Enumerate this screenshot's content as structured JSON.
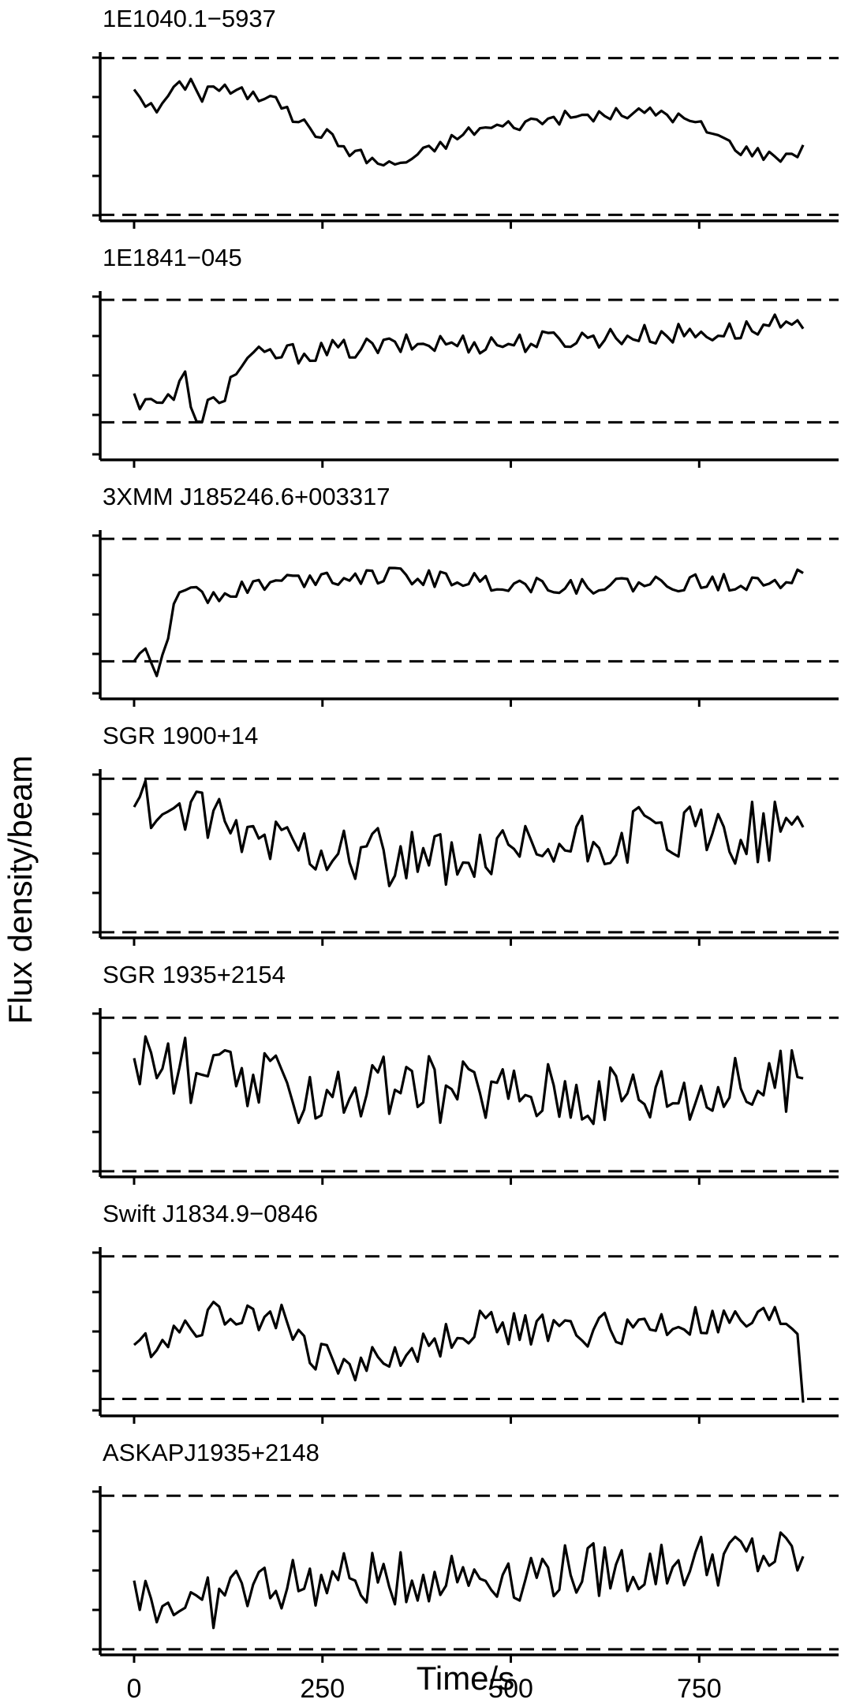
{
  "chart_data": {
    "type": "line",
    "ylabel": "Flux density/beam",
    "xlabel": "Time/s",
    "xlim": [
      -45,
      935
    ],
    "x_ticks": [
      0,
      250,
      500,
      750
    ],
    "x_tick_labels": [
      "0",
      "250",
      "500",
      "750"
    ],
    "grid": false,
    "legend": "none",
    "line_color": "#000000",
    "panels": [
      {
        "title": "1E1040.1−5937",
        "ylim": [
          -0.1,
          3.6
        ],
        "threshold_lines": [
          0,
          3.5
        ],
        "series": [
          {
            "keyframes": [
              [
                0,
                2.8
              ],
              [
                8,
                2.7
              ],
              [
                20,
                2.4
              ],
              [
                30,
                2.3
              ],
              [
                40,
                2.6
              ],
              [
                55,
                2.8
              ],
              [
                65,
                2.9
              ],
              [
                80,
                3.0
              ],
              [
                90,
                2.6
              ],
              [
                100,
                2.9
              ],
              [
                130,
                2.75
              ],
              [
                150,
                2.7
              ],
              [
                170,
                2.6
              ],
              [
                185,
                2.85
              ],
              [
                200,
                2.3
              ],
              [
                220,
                2.1
              ],
              [
                235,
                1.9
              ],
              [
                255,
                1.8
              ],
              [
                280,
                1.5
              ],
              [
                305,
                1.3
              ],
              [
                335,
                1.1
              ],
              [
                360,
                1.2
              ],
              [
                400,
                1.5
              ],
              [
                450,
                1.9
              ],
              [
                500,
                2.0
              ],
              [
                550,
                2.15
              ],
              [
                600,
                2.2
              ],
              [
                650,
                2.25
              ],
              [
                700,
                2.3
              ],
              [
                750,
                2.0
              ],
              [
                800,
                1.5
              ],
              [
                850,
                1.3
              ],
              [
                880,
                1.4
              ],
              [
                890,
                1.6
              ]
            ]
          }
        ]
      },
      {
        "title": "1E1841−045",
        "ylim": [
          -0.6,
          4.0
        ],
        "threshold_lines": [
          0.4,
          3.8
        ],
        "series": [
          {
            "keyframes": [
              [
                0,
                1.2
              ],
              [
                8,
                0.6
              ],
              [
                15,
                1.3
              ],
              [
                30,
                1.0
              ],
              [
                50,
                1.0
              ],
              [
                70,
                1.7
              ],
              [
                82,
                0.3
              ],
              [
                90,
                0.2
              ],
              [
                100,
                1.0
              ],
              [
                120,
                1.2
              ],
              [
                140,
                2.0
              ],
              [
                160,
                2.2
              ],
              [
                200,
                2.3
              ],
              [
                300,
                2.45
              ],
              [
                400,
                2.6
              ],
              [
                500,
                2.6
              ],
              [
                600,
                2.75
              ],
              [
                700,
                2.85
              ],
              [
                780,
                2.9
              ],
              [
                830,
                3.0
              ],
              [
                850,
                3.1
              ],
              [
                870,
                2.9
              ],
              [
                888,
                3.0
              ]
            ]
          }
        ]
      },
      {
        "title": "3XMM J185246.6+003317",
        "ylim": [
          -0.6,
          4.0
        ],
        "threshold_lines": [
          0.4,
          3.8
        ],
        "series": [
          {
            "keyframes": [
              [
                0,
                0.4
              ],
              [
                8,
                0.8
              ],
              [
                20,
                0.3
              ],
              [
                30,
                0.05
              ],
              [
                40,
                0.8
              ],
              [
                50,
                1.6
              ],
              [
                60,
                2.2
              ],
              [
                80,
                2.6
              ],
              [
                100,
                2.2
              ],
              [
                130,
                2.4
              ],
              [
                180,
                2.6
              ],
              [
                250,
                2.75
              ],
              [
                300,
                2.8
              ],
              [
                400,
                2.7
              ],
              [
                500,
                2.55
              ],
              [
                600,
                2.5
              ],
              [
                700,
                2.55
              ],
              [
                800,
                2.6
              ],
              [
                870,
                2.7
              ],
              [
                888,
                2.85
              ]
            ]
          }
        ]
      },
      {
        "title": "SGR 1900+14",
        "ylim": [
          -0.1,
          4.0
        ],
        "threshold_lines": [
          0,
          3.8
        ],
        "series": [
          {
            "keyframes": [
              [
                0,
                3.1
              ],
              [
                60,
                3.0
              ],
              [
                130,
                2.4
              ],
              [
                250,
                2.2
              ],
              [
                350,
                1.8
              ],
              [
                450,
                1.6
              ],
              [
                550,
                2.0
              ],
              [
                650,
                2.3
              ],
              [
                750,
                2.4
              ],
              [
                850,
                2.5
              ],
              [
                888,
                2.6
              ]
            ]
          }
        ]
      },
      {
        "title": "SGR 1935+2154",
        "ylim": [
          -0.1,
          4.0
        ],
        "threshold_lines": [
          0,
          3.8
        ],
        "series": [
          {
            "keyframes": [
              [
                0,
                2.8
              ],
              [
                50,
                2.6
              ],
              [
                100,
                2.3
              ],
              [
                150,
                2.2
              ],
              [
                200,
                2.0
              ],
              [
                300,
                2.0
              ],
              [
                400,
                2.0
              ],
              [
                500,
                2.0
              ],
              [
                600,
                2.0
              ],
              [
                700,
                2.0
              ],
              [
                800,
                2.0
              ],
              [
                888,
                2.3
              ]
            ]
          }
        ]
      },
      {
        "title": "Swift J1834.9−0846",
        "ylim": [
          -0.3,
          4.0
        ],
        "threshold_lines": [
          0.1,
          3.8
        ],
        "series": [
          {
            "keyframes": [
              [
                0,
                1.5
              ],
              [
                30,
                1.6
              ],
              [
                60,
                1.9
              ],
              [
                100,
                2.2
              ],
              [
                140,
                2.4
              ],
              [
                180,
                2.3
              ],
              [
                210,
                2.0
              ],
              [
                230,
                1.3
              ],
              [
                260,
                1.1
              ],
              [
                300,
                1.0
              ],
              [
                350,
                1.2
              ],
              [
                400,
                1.5
              ],
              [
                450,
                2.0
              ],
              [
                500,
                1.95
              ],
              [
                550,
                1.85
              ],
              [
                600,
                1.9
              ],
              [
                650,
                1.9
              ],
              [
                700,
                2.0
              ],
              [
                750,
                2.05
              ],
              [
                800,
                2.0
              ],
              [
                850,
                2.1
              ],
              [
                875,
                2.1
              ],
              [
                880,
                2.0
              ],
              [
                888,
                0.0
              ]
            ]
          }
        ]
      },
      {
        "title": "ASKAPJ1935+2148",
        "ylim": [
          -0.1,
          4.0
        ],
        "threshold_lines": [
          0,
          3.8
        ],
        "series": [
          {
            "keyframes": [
              [
                0,
                1.7
              ],
              [
                30,
                1.1
              ],
              [
                60,
                1.2
              ],
              [
                90,
                1.0
              ],
              [
                130,
                1.5
              ],
              [
                200,
                1.6
              ],
              [
                300,
                1.7
              ],
              [
                400,
                1.8
              ],
              [
                500,
                1.9
              ],
              [
                600,
                1.95
              ],
              [
                700,
                2.05
              ],
              [
                750,
                2.2
              ],
              [
                800,
                2.3
              ],
              [
                850,
                2.3
              ],
              [
                888,
                2.3
              ]
            ]
          }
        ]
      }
    ]
  }
}
